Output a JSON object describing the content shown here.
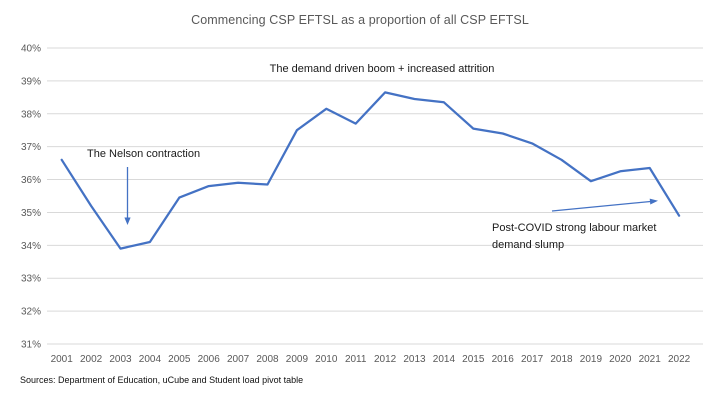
{
  "title": "Commencing CSP EFTSL as a proportion of all CSP EFTSL",
  "source_note": "Sources: Department of Education, uCube and Student load pivot table",
  "colors": {
    "line": "#4472C4",
    "arrow": "#4472C4",
    "gridline": "#D9D9D9",
    "axis_text": "#595959",
    "title_text": "#595959",
    "annotation_text": "#1a1a1a",
    "background": "#FFFFFF"
  },
  "chart_data": {
    "type": "line",
    "title": "Commencing CSP EFTSL as a proportion of all CSP EFTSL",
    "xlabel": "",
    "ylabel": "",
    "x": [
      2001,
      2002,
      2003,
      2004,
      2005,
      2006,
      2007,
      2008,
      2009,
      2010,
      2011,
      2012,
      2013,
      2014,
      2015,
      2016,
      2017,
      2018,
      2019,
      2020,
      2021,
      2022
    ],
    "series": [
      {
        "name": "Commencing CSP EFTSL as a proportion of all CSP EFTSL",
        "values": [
          36.6,
          35.2,
          33.9,
          34.1,
          35.45,
          35.8,
          35.9,
          35.85,
          37.5,
          38.15,
          37.7,
          38.65,
          38.45,
          38.35,
          37.55,
          37.4,
          37.1,
          36.6,
          35.95,
          36.25,
          36.35,
          34.9
        ]
      }
    ],
    "ylim": [
      31,
      40
    ],
    "ytick_step": 1,
    "ytick_suffix": "%",
    "grid": "horizontal-only",
    "legend": "none",
    "annotations": [
      {
        "id": "nelson",
        "text": "The Nelson contraction",
        "arrow": "down toward 2003 trough"
      },
      {
        "id": "boom",
        "text": "The demand driven boom + increased attrition"
      },
      {
        "id": "covid",
        "lines": [
          "Post-COVID strong labour market",
          "demand slump"
        ],
        "arrow": "up-right toward 2021 point"
      }
    ]
  }
}
